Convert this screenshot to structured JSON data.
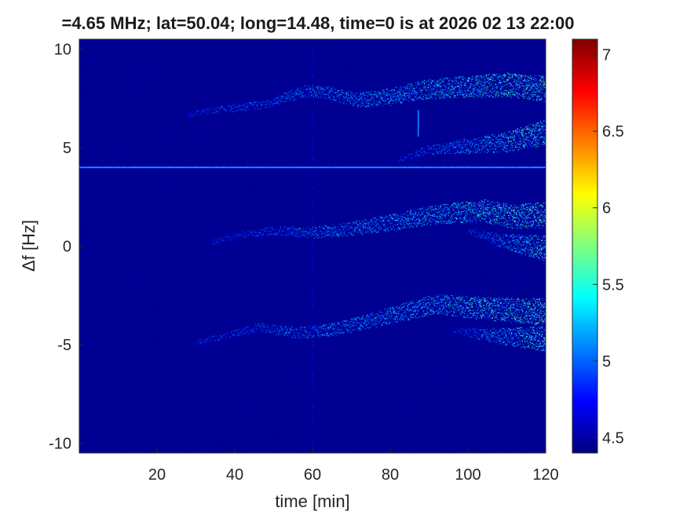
{
  "chart_data": {
    "type": "heatmap",
    "title": "=4.65 MHz;  lat=50.04; long=14.48, time=0 is at 2026 02 13 22:00",
    "xlabel": "time [min]",
    "ylabel": "Δf [Hz]",
    "xlim": [
      0,
      120
    ],
    "ylim": [
      -10.5,
      10.5
    ],
    "xticks": [
      20,
      40,
      60,
      80,
      100,
      120
    ],
    "yticks": [
      10,
      5,
      0,
      -5,
      -10
    ],
    "colorbar": {
      "range": [
        4.4,
        7.1
      ],
      "ticks": [
        4.5,
        5,
        5.5,
        6,
        6.5,
        7
      ],
      "colormap": "jet"
    },
    "background_level": 4.45,
    "carrier_line": {
      "df": 4.0,
      "level": 5.3
    },
    "vertical_spike_time": 60,
    "burst": {
      "time": 87,
      "df_range": [
        5.6,
        6.9
      ],
      "level": 5.2
    },
    "traces": [
      {
        "name": "",
        "points": [
          [
            28,
            6.7
          ],
          [
            38,
            7.0
          ],
          [
            48,
            7.2
          ],
          [
            58,
            7.9
          ],
          [
            64,
            7.8
          ],
          [
            72,
            7.4
          ],
          [
            80,
            7.6
          ],
          [
            90,
            8.0
          ],
          [
            100,
            8.1
          ],
          [
            110,
            8.2
          ],
          [
            120,
            8.0
          ]
        ]
      },
      {
        "name": "",
        "points": [
          [
            82,
            4.4
          ],
          [
            90,
            4.9
          ],
          [
            100,
            5.1
          ],
          [
            110,
            5.3
          ],
          [
            120,
            5.8
          ]
        ]
      },
      {
        "name": "",
        "points": [
          [
            34,
            0.2
          ],
          [
            42,
            0.6
          ],
          [
            50,
            0.8
          ],
          [
            60,
            0.7
          ],
          [
            70,
            0.9
          ],
          [
            80,
            1.2
          ],
          [
            88,
            1.5
          ],
          [
            96,
            1.7
          ],
          [
            104,
            1.8
          ],
          [
            112,
            1.5
          ],
          [
            120,
            1.6
          ]
        ]
      },
      {
        "name": "",
        "points": [
          [
            100,
            0.8
          ],
          [
            108,
            0.3
          ],
          [
            114,
            0.1
          ],
          [
            120,
            -0.1
          ]
        ]
      },
      {
        "name": "",
        "points": [
          [
            30,
            -4.9
          ],
          [
            38,
            -4.5
          ],
          [
            46,
            -4.1
          ],
          [
            56,
            -4.4
          ],
          [
            66,
            -4.2
          ],
          [
            76,
            -3.7
          ],
          [
            84,
            -3.3
          ],
          [
            92,
            -2.9
          ],
          [
            100,
            -3.1
          ],
          [
            108,
            -3.2
          ],
          [
            116,
            -3.3
          ],
          [
            120,
            -3.3
          ]
        ]
      },
      {
        "name": "",
        "points": [
          [
            96,
            -4.2
          ],
          [
            104,
            -4.5
          ],
          [
            112,
            -4.6
          ],
          [
            120,
            -4.7
          ]
        ]
      }
    ]
  }
}
